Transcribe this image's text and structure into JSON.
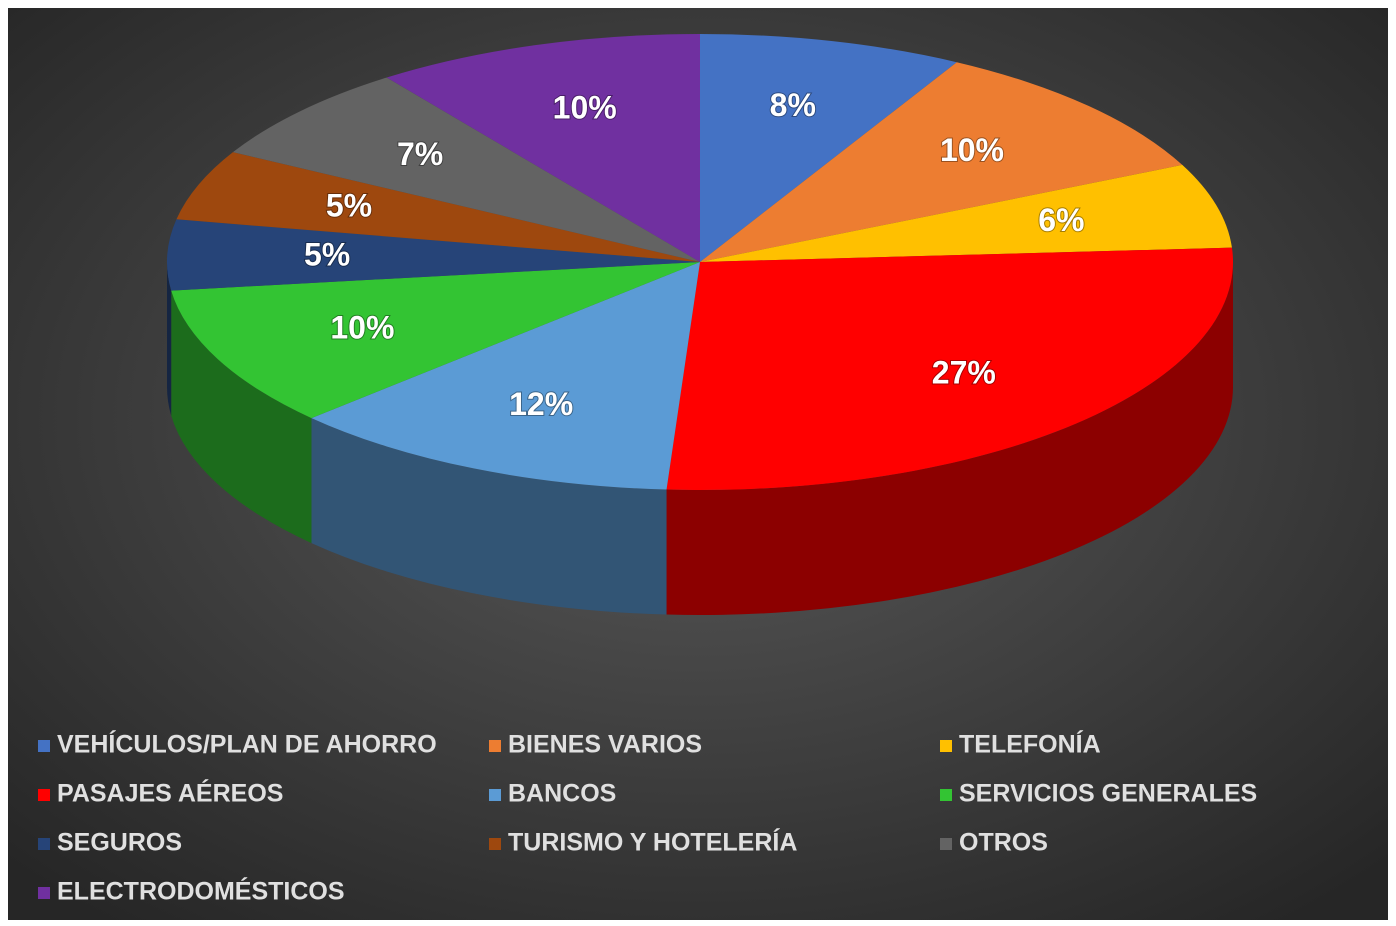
{
  "chart_data": {
    "type": "pie",
    "categories": [
      "VEHÍCULOS/PLAN DE AHORRO",
      "BIENES VARIOS",
      "TELEFONÍA",
      "PASAJES AÉREOS",
      "BANCOS",
      "SERVICIOS GENERALES",
      "SEGUROS",
      "TURISMO Y HOTELERÍA",
      "OTROS",
      "ELECTRODOMÉSTICOS"
    ],
    "values": [
      8,
      10,
      6,
      27,
      12,
      10,
      5,
      5,
      7,
      10
    ],
    "value_labels": [
      "8%",
      "10%",
      "6%",
      "27%",
      "12%",
      "10%",
      "5%",
      "5%",
      "7%",
      "10%"
    ],
    "colors": [
      "#4472c4",
      "#ed7d31",
      "#ffc000",
      "#ff0000",
      "#5b9bd5",
      "#33c433",
      "#264478",
      "#9e480e",
      "#636363",
      "#7030a0"
    ],
    "legend": "bottom"
  }
}
